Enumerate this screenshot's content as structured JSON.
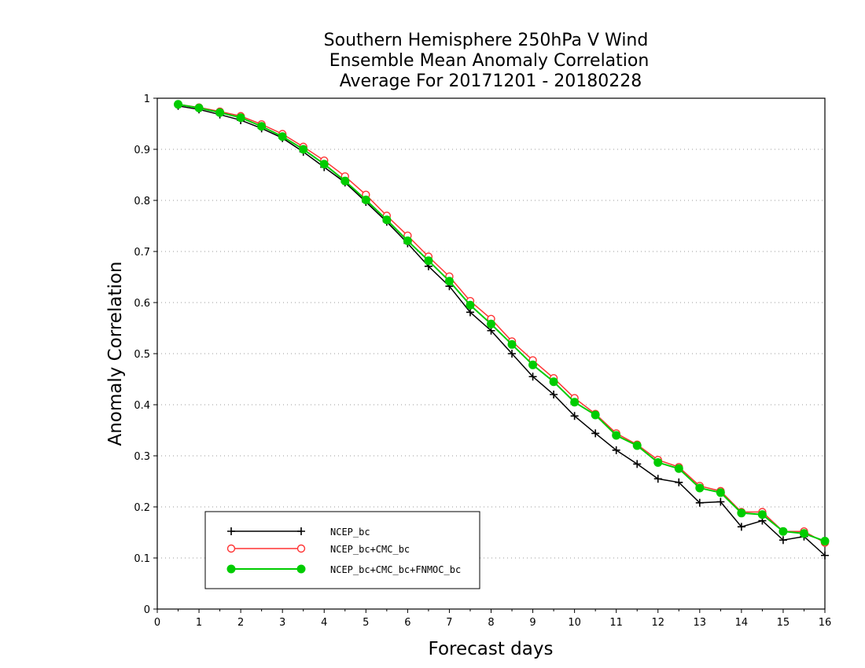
{
  "chart_data": {
    "type": "line",
    "title_lines": [
      "Southern Hemisphere 250hPa V Wind",
      "Ensemble Mean Anomaly Correlation",
      "Average For 20171201 - 20180228"
    ],
    "xlabel": "Forecast days",
    "ylabel": "Anomaly Correlation",
    "xlim": [
      0,
      16
    ],
    "ylim": [
      0,
      1
    ],
    "x_ticks": [
      "0",
      "1",
      "2",
      "3",
      "4",
      "5",
      "6",
      "7",
      "8",
      "9",
      "10",
      "11",
      "12",
      "13",
      "14",
      "15",
      "16"
    ],
    "y_ticks": [
      "0",
      "0.1",
      "0.2",
      "0.3",
      "0.4",
      "0.5",
      "0.6",
      "0.7",
      "0.8",
      "0.9",
      "1"
    ],
    "grid": "horizontal dotted",
    "legend_position": "bottom-left",
    "x": [
      0.5,
      1,
      1.5,
      2,
      2.5,
      3,
      3.5,
      4,
      4.5,
      5,
      5.5,
      6,
      6.5,
      7,
      7.5,
      8,
      8.5,
      9,
      9.5,
      10,
      10.5,
      11,
      11.5,
      12,
      12.5,
      13,
      13.5,
      14,
      14.5,
      15,
      15.5,
      16
    ],
    "series": [
      {
        "name": "NCEP_bc",
        "color": "#000000",
        "marker": "plus",
        "values": [
          0.985,
          0.978,
          0.968,
          0.957,
          0.941,
          0.922,
          0.895,
          0.865,
          0.835,
          0.797,
          0.758,
          0.716,
          0.671,
          0.632,
          0.581,
          0.545,
          0.5,
          0.455,
          0.42,
          0.378,
          0.344,
          0.311,
          0.284,
          0.255,
          0.248,
          0.208,
          0.21,
          0.161,
          0.173,
          0.135,
          0.142,
          0.105
        ]
      },
      {
        "name": "NCEP_bc+CMC_bc",
        "color": "#ff3333",
        "marker": "open-circle",
        "values": [
          0.988,
          0.982,
          0.974,
          0.965,
          0.949,
          0.93,
          0.905,
          0.878,
          0.847,
          0.811,
          0.77,
          0.731,
          0.69,
          0.651,
          0.603,
          0.568,
          0.524,
          0.487,
          0.452,
          0.413,
          0.382,
          0.344,
          0.322,
          0.292,
          0.278,
          0.241,
          0.231,
          0.19,
          0.19,
          0.152,
          0.152,
          0.13
        ]
      },
      {
        "name": "NCEP_bc+CMC_bc+FNMOC_bc",
        "color": "#00cc00",
        "marker": "filled-circle",
        "values": [
          0.988,
          0.981,
          0.972,
          0.962,
          0.945,
          0.925,
          0.9,
          0.871,
          0.838,
          0.801,
          0.762,
          0.721,
          0.682,
          0.642,
          0.595,
          0.558,
          0.518,
          0.478,
          0.445,
          0.405,
          0.38,
          0.34,
          0.32,
          0.287,
          0.275,
          0.237,
          0.228,
          0.188,
          0.185,
          0.152,
          0.148,
          0.133
        ]
      }
    ]
  }
}
